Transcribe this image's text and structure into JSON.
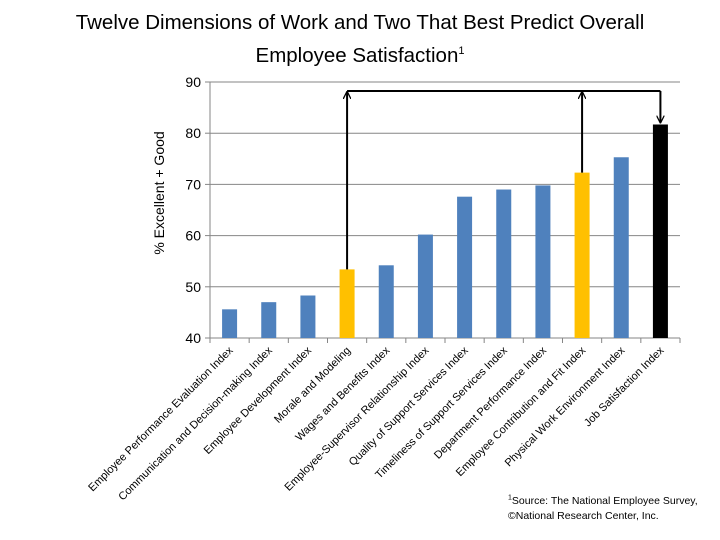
{
  "slide": {
    "title_line1": "Twelve Dimensions of Work and Two That Best Predict Overall",
    "title_line2": "Employee Satisfaction",
    "title_superscript": "1",
    "footnote_superscript": "1",
    "footnote_line1": "Source: The National Employee Survey,",
    "footnote_line2": "©National Research Center, Inc."
  },
  "chart_data": {
    "type": "bar",
    "title": "Twelve Dimensions of Work and Two That Best Predict Overall Employee Satisfaction",
    "xlabel": "",
    "ylabel": "% Excellent + Good",
    "ylim": [
      40,
      90
    ],
    "yticks": [
      40,
      50,
      60,
      70,
      80,
      90
    ],
    "grid": true,
    "legend": "none",
    "categories": [
      "Employee Performance Evaluation Index",
      "Communication and Decision-making Index",
      "Employee Development Index",
      "Morale and Modeling",
      "Wages and Benefits Index",
      "Employee-Supervisor Relationship Index",
      "Quality of Support Services Index",
      "Timeliness of Support Services Index",
      "Department Performance Index",
      "Employee Contribution and Fit Index",
      "Physical Work Environment Index",
      "Job Satisfaction Index"
    ],
    "values": [
      45.6,
      47.0,
      48.3,
      53.4,
      54.2,
      60.2,
      67.6,
      69.0,
      69.8,
      72.3,
      75.3,
      81.7
    ],
    "bar_colors": [
      "#4F81BD",
      "#4F81BD",
      "#4F81BD",
      "#FFC000",
      "#4F81BD",
      "#4F81BD",
      "#4F81BD",
      "#4F81BD",
      "#4F81BD",
      "#FFC000",
      "#4F81BD",
      "#000000"
    ],
    "highlighted_categories": [
      "Morale and Modeling",
      "Employee Contribution and Fit Index"
    ],
    "target_category": "Job Satisfaction Index",
    "annotation": "arrows connect the two highlighted predictors to the Job Satisfaction Index"
  },
  "colors": {
    "default_bar": "#4F81BD",
    "highlight_bar": "#FFC000",
    "target_bar": "#000000",
    "gridline": "#868686",
    "axis": "#868686",
    "arrow": "#000000"
  }
}
